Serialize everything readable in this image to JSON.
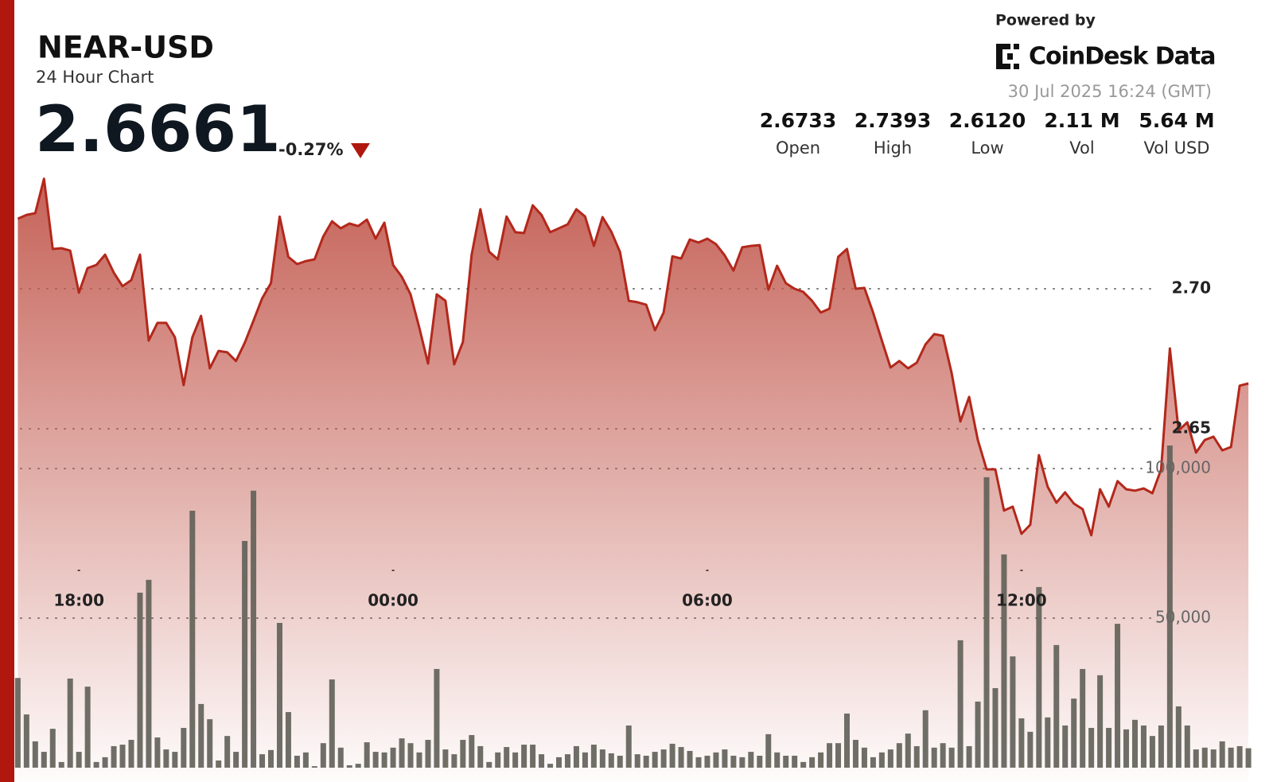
{
  "header": {
    "title": "NEAR-USD",
    "subtitle": "24 Hour Chart",
    "price": "2.6661",
    "change": "-0.27%",
    "powered_by": "Powered by",
    "brand": "CoinDesk Data",
    "timestamp": "30 Jul 2025 16:24 (GMT)"
  },
  "stats": [
    {
      "value": "2.6733",
      "label": "Open"
    },
    {
      "value": "2.7393",
      "label": "High"
    },
    {
      "value": "2.6120",
      "label": "Low"
    },
    {
      "value": "2.11 M",
      "label": "Vol"
    },
    {
      "value": "5.64 M",
      "label": "Vol USD"
    }
  ],
  "chart_data": {
    "type": "area",
    "x": [
      -430,
      -420,
      -410,
      -400,
      -390,
      -380,
      -370,
      -360,
      -350,
      -340,
      -330,
      -320,
      -310,
      -300,
      -290,
      -280,
      -270,
      -260,
      -250,
      -240,
      -230,
      -220,
      -210,
      -200,
      -190,
      -180,
      -170,
      -160,
      -150,
      -140,
      -130,
      -120,
      -110,
      -100,
      -90,
      -80,
      -70,
      -60,
      -50,
      -40,
      -30,
      -20,
      -10,
      0,
      10,
      20,
      30,
      40,
      50,
      60,
      70,
      80,
      90,
      100,
      110,
      120,
      130,
      140,
      150,
      160,
      170,
      180,
      190,
      200,
      210,
      220,
      230,
      240,
      250,
      260,
      270,
      280,
      290,
      300,
      310,
      320,
      330,
      340,
      350,
      360,
      370,
      380,
      390,
      400,
      410,
      420,
      430,
      440,
      450,
      460,
      470,
      480,
      490,
      500,
      510,
      520,
      530,
      540,
      550,
      560,
      570,
      580,
      590,
      600,
      610,
      620,
      630,
      640,
      650,
      660,
      670,
      680,
      690,
      700,
      710,
      720,
      730,
      740,
      750,
      760,
      770,
      780,
      790,
      800,
      810,
      820,
      830,
      840,
      850,
      860,
      870,
      880,
      890,
      900,
      910,
      920,
      930,
      940,
      950,
      960,
      970,
      980
    ],
    "xlim": [
      -434,
      979
    ],
    "xticks": [
      {
        "value": -360,
        "label": "18:00"
      },
      {
        "value": 0,
        "label": "00:00"
      },
      {
        "value": 360,
        "label": "06:00"
      },
      {
        "value": 720,
        "label": "12:00"
      }
    ],
    "ylim": [
      2.52,
      2.75
    ],
    "yticks": [
      {
        "value": 2.7,
        "label": "2.70"
      },
      {
        "value": 2.65,
        "label": "2.65"
      }
    ],
    "y2lim": [
      0,
      250000
    ],
    "y2ticks": [
      {
        "value": 50000,
        "label": "50,000"
      },
      {
        "value": 100000,
        "label": "100,000"
      }
    ],
    "grid": true,
    "series": [
      {
        "color": "#b3281c",
        "values": [
          2.725,
          2.7264,
          2.727,
          2.7393,
          2.7142,
          2.7145,
          2.7136,
          2.6986,
          2.7074,
          2.7085,
          2.7122,
          2.7057,
          2.7009,
          2.7031,
          2.7122,
          2.6815,
          2.6878,
          2.6878,
          2.6827,
          2.6656,
          2.6827,
          2.6903,
          2.6716,
          2.6778,
          2.6773,
          2.6742,
          2.6807,
          2.6886,
          2.6966,
          2.702,
          2.7258,
          2.7114,
          2.7088,
          2.7099,
          2.7105,
          2.7187,
          2.7241,
          2.7216,
          2.7233,
          2.7224,
          2.7247,
          2.7179,
          2.7236,
          2.7085,
          2.7043,
          2.698,
          2.6861,
          2.6733,
          2.698,
          2.6957,
          2.673,
          2.681,
          2.7122,
          2.7284,
          2.7133,
          2.7105,
          2.7258,
          2.7202,
          2.7199,
          2.7298,
          2.7264,
          2.7202,
          2.7216,
          2.723,
          2.7284,
          2.7258,
          2.7153,
          2.7256,
          2.7204,
          2.7131,
          2.6957,
          2.6952,
          2.6943,
          2.6852,
          2.6915,
          2.7116,
          2.7108,
          2.7176,
          2.7165,
          2.7179,
          2.7159,
          2.7119,
          2.7065,
          2.7148,
          2.7153,
          2.7156,
          2.6997,
          2.7082,
          2.702,
          2.7,
          2.6989,
          2.6957,
          2.6915,
          2.6929,
          2.7114,
          2.7142,
          2.7,
          2.7003,
          2.6915,
          2.6815,
          2.6719,
          2.6742,
          2.6716,
          2.6736,
          2.6801,
          2.6838,
          2.6832,
          2.6699,
          2.6526,
          2.6614,
          2.646,
          2.6355,
          2.6355,
          2.6208,
          2.6222,
          2.6125,
          2.6157,
          2.6406,
          2.6293,
          2.6236,
          2.6273,
          2.6233,
          2.6213,
          2.612,
          2.6284,
          2.6222,
          2.6313,
          2.6284,
          2.6279,
          2.6287,
          2.627,
          2.6355,
          2.6787,
          2.6494,
          2.6523,
          2.6415,
          2.646,
          2.6472,
          2.6423,
          2.6435,
          2.6654,
          2.6662
        ]
      },
      {
        "type": "bar",
        "axis": "y2",
        "color": "#5f5f56",
        "values": [
          30000,
          17800,
          8800,
          5300,
          13000,
          1900,
          29800,
          5300,
          27100,
          1900,
          3500,
          7200,
          7700,
          9300,
          58500,
          62800,
          10100,
          6100,
          5300,
          13300,
          85900,
          21300,
          16200,
          2400,
          10600,
          5300,
          75800,
          92600,
          4500,
          5900,
          48400,
          18600,
          4000,
          5100,
          500,
          8200,
          29500,
          6700,
          800,
          1300,
          8500,
          5300,
          5100,
          6700,
          9800,
          8200,
          5100,
          9300,
          33000,
          6100,
          4500,
          9300,
          10900,
          7200,
          1900,
          5100,
          6900,
          5100,
          7700,
          7700,
          4500,
          1300,
          3500,
          4500,
          7200,
          5100,
          7700,
          6100,
          4800,
          4000,
          14100,
          4500,
          4000,
          5300,
          6100,
          8000,
          6900,
          5600,
          3500,
          4000,
          5100,
          6100,
          4000,
          3500,
          5300,
          4000,
          11200,
          5100,
          4000,
          4000,
          1900,
          3500,
          5100,
          8200,
          8200,
          18100,
          9300,
          6700,
          3500,
          5100,
          6100,
          8200,
          11400,
          7200,
          19200,
          6700,
          8200,
          6700,
          42600,
          7200,
          22100,
          97100,
          26600,
          71300,
          37200,
          16500,
          12000,
          60400,
          16800,
          41000,
          14100,
          23100,
          33000,
          13300,
          30900,
          13300,
          48100,
          12800,
          16000,
          14100,
          10600,
          14100,
          107700,
          20500,
          14100,
          6100,
          6700,
          6100,
          8800,
          6700,
          7200,
          6500
        ]
      }
    ]
  }
}
